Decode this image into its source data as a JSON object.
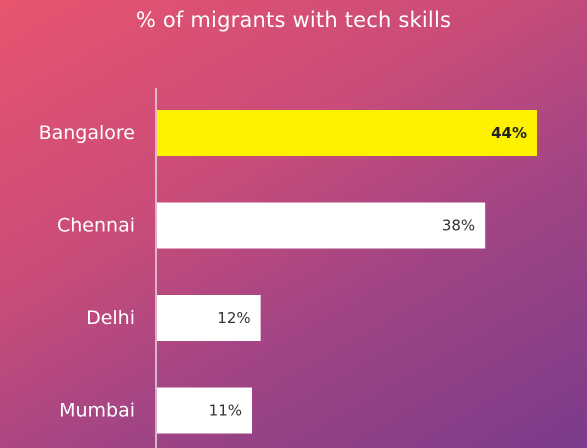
{
  "chart_data": {
    "type": "bar",
    "orientation": "horizontal",
    "title": "% of migrants with tech skills",
    "categories": [
      "Bangalore",
      "Chennai",
      "Delhi",
      "Mumbai"
    ],
    "values": [
      44,
      38,
      12,
      11
    ],
    "value_labels": [
      "44%",
      "38%",
      "12%",
      "11%"
    ],
    "unit": "%",
    "xlim": [
      0,
      50
    ],
    "grid": false,
    "legend": "none",
    "colors": {
      "highlight": "#fff200",
      "default": "#ffffff",
      "axis": "#e8d8e4"
    },
    "highlight_index": 0
  }
}
